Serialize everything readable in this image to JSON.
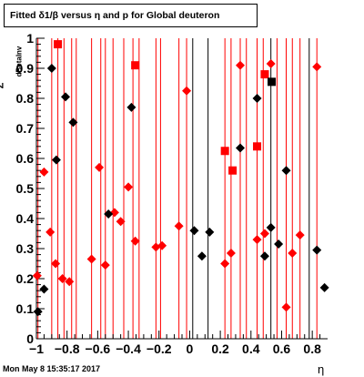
{
  "title": "Fitted δ1/β versus η and p for Global deuteron",
  "timestamp": "Mon May  8 15:35:17 2017",
  "xlabel": "η",
  "ylabel_main": "Z",
  "ylabel_sub": "dBetaInv",
  "colors": {
    "red": "#ff0000",
    "black": "#000000",
    "axis": "#000000"
  },
  "chart_data": {
    "type": "scatter",
    "title": "Fitted δ1/β versus η and p for Global deuteron",
    "xlabel": "η",
    "ylabel": "Z dBetaInv",
    "xlim": [
      -1,
      0.9
    ],
    "ylim": [
      0,
      1
    ],
    "x_ticks": [
      -1,
      -0.8,
      -0.6,
      -0.4,
      -0.2,
      0,
      0.2,
      0.4,
      0.6,
      0.8
    ],
    "x_tick_labels": [
      "−1",
      "−0.8",
      "−0.6",
      "−0.4",
      "−0.2",
      "0",
      "0.2",
      "0.4",
      "0.6",
      "0.8"
    ],
    "y_ticks": [
      0,
      0.1,
      0.2,
      0.3,
      0.4,
      0.5,
      0.6,
      0.7,
      0.8,
      0.9,
      1
    ],
    "y_tick_labels": [
      "0",
      "0.1",
      "0.2",
      "0.3",
      "0.4",
      "0.5",
      "0.6",
      "0.7",
      "0.8",
      "0.9",
      "1"
    ],
    "vertical_lines": [
      {
        "x": -0.99,
        "color": "red"
      },
      {
        "x": -0.9,
        "color": "red"
      },
      {
        "x": -0.86,
        "color": "red"
      },
      {
        "x": -0.82,
        "color": "red"
      },
      {
        "x": -0.77,
        "color": "red"
      },
      {
        "x": -0.74,
        "color": "red"
      },
      {
        "x": -0.64,
        "color": "red"
      },
      {
        "x": -0.58,
        "color": "red"
      },
      {
        "x": -0.55,
        "color": "red"
      },
      {
        "x": -0.5,
        "color": "red"
      },
      {
        "x": -0.43,
        "color": "red"
      },
      {
        "x": -0.37,
        "color": "red"
      },
      {
        "x": -0.33,
        "color": "red"
      },
      {
        "x": -0.22,
        "color": "red"
      },
      {
        "x": -0.19,
        "color": "red"
      },
      {
        "x": -0.07,
        "color": "red"
      },
      {
        "x": -0.02,
        "color": "red"
      },
      {
        "x": 0.02,
        "color": "black"
      },
      {
        "x": 0.12,
        "color": "black"
      },
      {
        "x": 0.23,
        "color": "red"
      },
      {
        "x": 0.27,
        "color": "red"
      },
      {
        "x": 0.33,
        "color": "red"
      },
      {
        "x": 0.37,
        "color": "red"
      },
      {
        "x": 0.44,
        "color": "red"
      },
      {
        "x": 0.48,
        "color": "red"
      },
      {
        "x": 0.53,
        "color": "black"
      },
      {
        "x": 0.57,
        "color": "red"
      },
      {
        "x": 0.63,
        "color": "red"
      },
      {
        "x": 0.67,
        "color": "red"
      },
      {
        "x": 0.72,
        "color": "red"
      },
      {
        "x": 0.78,
        "color": "black"
      },
      {
        "x": 0.83,
        "color": "red"
      }
    ],
    "series": [
      {
        "color": "red",
        "marker": "diamond",
        "points": [
          [
            -0.995,
            0.21
          ],
          [
            -0.95,
            0.555
          ],
          [
            -0.91,
            0.355
          ],
          [
            -0.875,
            0.25
          ],
          [
            -0.83,
            0.2
          ],
          [
            -0.785,
            0.19
          ],
          [
            -0.64,
            0.265
          ],
          [
            -0.59,
            0.57
          ],
          [
            -0.55,
            0.245
          ],
          [
            -0.49,
            0.42
          ],
          [
            -0.45,
            0.39
          ],
          [
            -0.4,
            0.505
          ],
          [
            -0.355,
            0.325
          ],
          [
            -0.22,
            0.305
          ],
          [
            -0.18,
            0.31
          ],
          [
            -0.07,
            0.375
          ],
          [
            -0.02,
            0.825
          ],
          [
            0.23,
            0.25
          ],
          [
            0.27,
            0.285
          ],
          [
            0.33,
            0.91
          ],
          [
            0.44,
            0.33
          ],
          [
            0.49,
            0.35
          ],
          [
            0.53,
            0.915
          ],
          [
            0.63,
            0.105
          ],
          [
            0.67,
            0.285
          ],
          [
            0.72,
            0.345
          ],
          [
            0.83,
            0.905
          ]
        ]
      },
      {
        "color": "red",
        "marker": "square",
        "points": [
          [
            -0.86,
            0.98
          ],
          [
            -0.355,
            0.91
          ],
          [
            0.23,
            0.625
          ],
          [
            0.28,
            0.56
          ],
          [
            0.44,
            0.64
          ],
          [
            0.49,
            0.88
          ]
        ]
      },
      {
        "color": "black",
        "marker": "diamond",
        "points": [
          [
            -0.99,
            0.09
          ],
          [
            -0.95,
            0.165
          ],
          [
            -0.9,
            0.9
          ],
          [
            -0.87,
            0.595
          ],
          [
            -0.81,
            0.805
          ],
          [
            -0.76,
            0.72
          ],
          [
            -0.53,
            0.415
          ],
          [
            -0.38,
            0.77
          ],
          [
            0.03,
            0.36
          ],
          [
            0.08,
            0.275
          ],
          [
            0.13,
            0.355
          ],
          [
            0.33,
            0.635
          ],
          [
            0.44,
            0.8
          ],
          [
            0.49,
            0.275
          ],
          [
            0.53,
            0.37
          ],
          [
            0.58,
            0.315
          ],
          [
            0.63,
            0.56
          ],
          [
            0.83,
            0.295
          ],
          [
            0.88,
            0.17
          ]
        ]
      },
      {
        "color": "black",
        "marker": "square",
        "points": [
          [
            0.535,
            0.855
          ]
        ]
      }
    ]
  }
}
